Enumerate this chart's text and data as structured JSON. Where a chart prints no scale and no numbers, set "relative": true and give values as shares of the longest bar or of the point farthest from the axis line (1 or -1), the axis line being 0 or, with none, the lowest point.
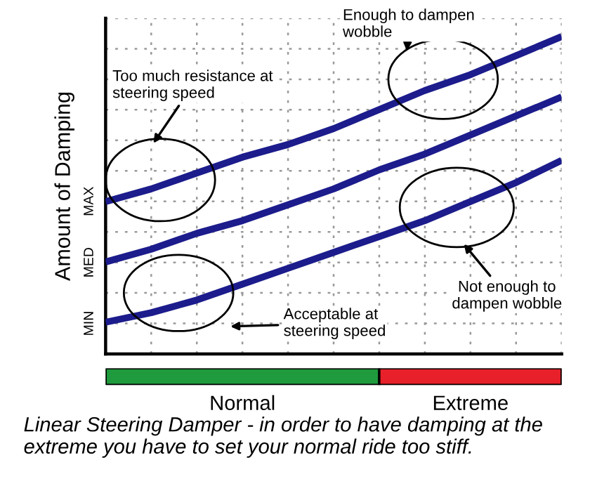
{
  "chart_data": {
    "type": "line",
    "ylabel": "Amount of Damping",
    "relative": true,
    "categories": [
      null,
      null,
      null,
      null,
      null,
      null,
      null,
      null,
      null,
      null,
      null
    ],
    "series": [
      {
        "color": "#1c1c8c",
        "values": [
          0.48,
          0.52,
          0.57,
          0.62,
          0.66,
          0.71,
          0.77,
          0.83,
          0.88,
          0.94,
          1.0
        ]
      },
      {
        "color": "#1c1c8c",
        "values": [
          0.29,
          0.33,
          0.38,
          0.42,
          0.47,
          0.52,
          0.58,
          0.63,
          0.69,
          0.75,
          0.81
        ]
      },
      {
        "color": "#1c1c8c",
        "values": [
          0.1,
          0.13,
          0.17,
          0.22,
          0.27,
          0.32,
          0.37,
          0.42,
          0.48,
          0.54,
          0.61
        ]
      }
    ],
    "grid": true,
    "marker": "none",
    "line_style": "solid",
    "annotations": [
      "Too much resistance at\nsteering speed",
      "Enough to dampen\nwobble",
      "Acceptable at\nsteering speed",
      "Not enough to\ndampen wobble",
      "MIN",
      "MED",
      "MAX",
      "Normal",
      "Extreme",
      "Linear Steering Damper - in order to have damping at the extreme you have to set your normal ride too stiff."
    ]
  }
}
